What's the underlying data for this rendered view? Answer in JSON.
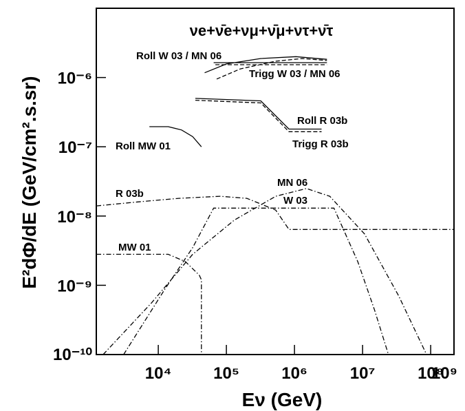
{
  "chart_data": {
    "type": "line",
    "title": "νe+ν̄e+νμ+ν̄μ+ντ+ν̄τ",
    "x_label": "Eν (GeV)",
    "y_label": "E²dΦ/dE (GeV/cm².s.sr)",
    "log_x": true,
    "log_y": true,
    "xlim": [
      1230,
      220000000
    ],
    "ylim": [
      1e-10,
      1e-05
    ],
    "xticks": [
      {
        "value": 10000,
        "label": "10⁴"
      },
      {
        "value": 100000,
        "label": "10⁵"
      },
      {
        "value": 1000000,
        "label": "10⁶"
      },
      {
        "value": 10000000,
        "label": "10⁷"
      },
      {
        "value": 100000000,
        "label": "10⁸"
      },
      {
        "value": 1000000000,
        "label": "10⁹"
      }
    ],
    "yticks": [
      {
        "value": 1e-10,
        "label": "10⁻¹⁰"
      },
      {
        "value": 1e-09,
        "label": "10⁻⁹"
      },
      {
        "value": 1e-08,
        "label": "10⁻⁸"
      },
      {
        "value": 1e-07,
        "label": "10⁻⁷"
      },
      {
        "value": 1e-06,
        "label": "10⁻⁶"
      }
    ],
    "series": [
      {
        "name": "Roll MW 01",
        "color": "#000000",
        "line_style": "solid",
        "x": [
          7400,
          14000,
          22000,
          32000,
          43000
        ],
        "values": [
          1.95e-07,
          1.95e-07,
          1.75e-07,
          1.4e-07,
          1e-07
        ]
      },
      {
        "name": "Roll R 03b",
        "color": "#000000",
        "line_style": "solid",
        "x": [
          35000,
          320000,
          830000,
          2500000
        ],
        "values": [
          5e-07,
          4.6e-07,
          1.8e-07,
          1.8e-07
        ]
      },
      {
        "name": "Trigg R 03b",
        "color": "#000000",
        "line_style": "dashed",
        "x": [
          35000,
          320000,
          830000,
          2500000
        ],
        "values": [
          4.7e-07,
          4.3e-07,
          1.65e-07,
          1.65e-07
        ]
      },
      {
        "name": "Roll W 03 / MN 06",
        "color": "#000000",
        "line_style": "solid",
        "x": [
          65000,
          3000000,
          null,
          48000,
          100000,
          320000,
          1050000,
          3000000
        ],
        "values": [
          1.64e-06,
          1.64e-06,
          null,
          1.17e-06,
          1.57e-06,
          1.88e-06,
          2e-06,
          1.83e-06
        ]
      },
      {
        "name": "Trigg W 03 / MN 06",
        "color": "#000000",
        "line_style": "dashed",
        "x": [
          69000,
          3000000,
          null,
          72000,
          160000,
          530000,
          1300000,
          3000000
        ],
        "values": [
          1.53e-06,
          1.53e-06,
          null,
          9.5e-07,
          1.33e-06,
          1.72e-06,
          1.88e-06,
          1.76e-06
        ]
      },
      {
        "name": "R 03b",
        "color": "#000000",
        "line_style": "dashdot",
        "x": [
          1230,
          5000,
          20000,
          81000,
          200000,
          530000,
          830000,
          220000000
        ],
        "values": [
          1.4e-08,
          1.6e-08,
          1.8e-08,
          1.93e-08,
          1.8e-08,
          1.22e-08,
          6.4e-09,
          6.4e-09
        ]
      },
      {
        "name": "W 03",
        "color": "#000000",
        "line_style": "dashdot",
        "x": [
          3100,
          12500,
          32000,
          65000,
          3800000,
          8500000,
          15000000,
          24000000
        ],
        "values": [
          1e-10,
          8.8e-10,
          3.5e-09,
          1.3e-08,
          1.3e-08,
          2.2e-09,
          4.4e-10,
          1e-10
        ]
      },
      {
        "name": "MN 06",
        "color": "#000000",
        "line_style": "dashdot",
        "x": [
          1550,
          8000,
          32000,
          130000,
          530000,
          1500000,
          3300000,
          10700000,
          34000000,
          87000000
        ],
        "values": [
          1e-10,
          5.6e-10,
          2.8e-09,
          8.7e-09,
          1.93e-08,
          2.5e-08,
          1.93e-08,
          5.5e-09,
          7e-10,
          1e-10
        ]
      },
      {
        "name": "MW 01",
        "color": "#000000",
        "line_style": "dashdot",
        "x": [
          1230,
          14000,
          25000,
          40000,
          43000,
          43000
        ],
        "values": [
          2.8e-09,
          2.8e-09,
          2.2e-09,
          1.4e-09,
          1.2e-09,
          1e-10
        ]
      }
    ]
  }
}
